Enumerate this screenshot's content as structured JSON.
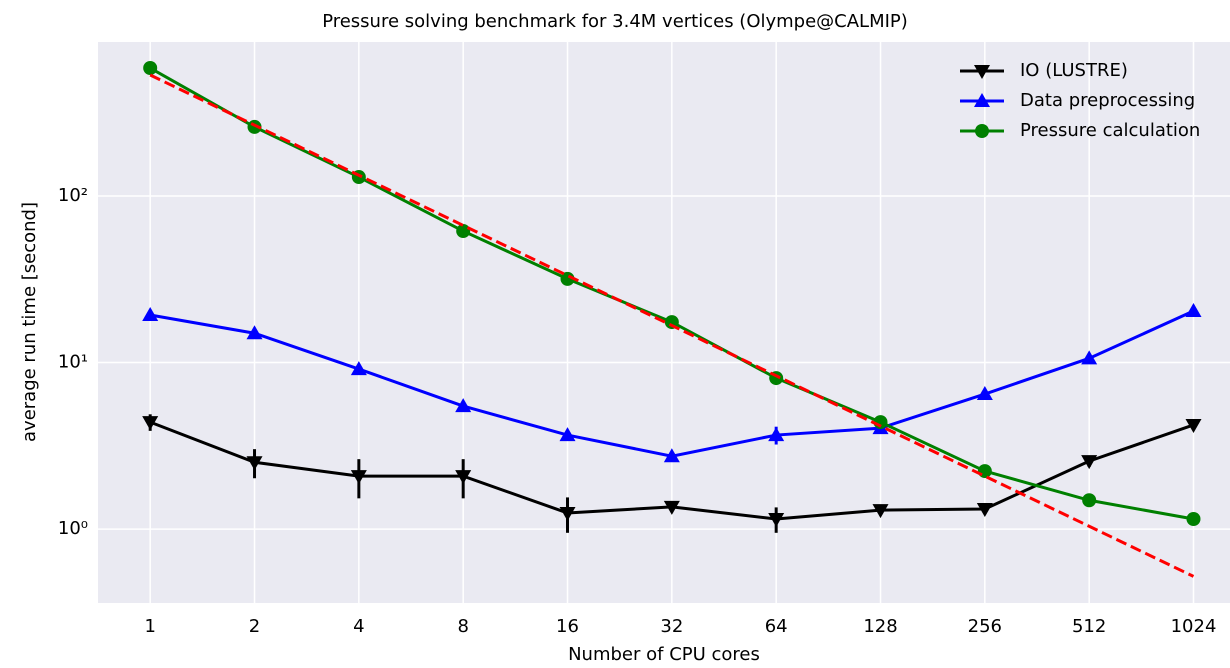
{
  "chart_data": {
    "type": "line",
    "title": "Pressure solving benchmark for 3.4M vertices (Olympe@CALMIP)",
    "xlabel": "Number of CPU cores",
    "ylabel": "average run time [second]",
    "x": [
      1,
      2,
      4,
      8,
      16,
      32,
      64,
      128,
      256,
      512,
      1024
    ],
    "xscale": "log2",
    "yscale": "log",
    "xlim": [
      0.707,
      1305
    ],
    "ylim": [
      0.36,
      841
    ],
    "xticks": [
      1,
      2,
      4,
      8,
      16,
      32,
      64,
      128,
      256,
      512,
      1024
    ],
    "yticks": [
      {
        "value": 1,
        "label": "10⁰"
      },
      {
        "value": 10,
        "label": "10¹"
      },
      {
        "value": 100,
        "label": "10²"
      }
    ],
    "grid": true,
    "legend": "upper right",
    "series": [
      {
        "name": "IO (LUSTRE)",
        "color": "#000000",
        "marker": "triangle-down",
        "values": [
          4.39,
          2.52,
          2.08,
          2.08,
          1.25,
          1.36,
          1.15,
          1.3,
          1.32,
          2.56,
          4.22
        ],
        "errors": [
          0.5,
          0.5,
          0.55,
          0.55,
          0.3,
          0.1,
          0.2,
          0.08,
          0.05,
          0.2,
          0.3
        ]
      },
      {
        "name": "Data preprocessing",
        "color": "#0000ff",
        "marker": "triangle-up",
        "values": [
          19.3,
          15.0,
          9.14,
          5.48,
          3.67,
          2.74,
          3.67,
          4.04,
          6.47,
          10.6,
          20.4
        ],
        "errors": [
          0.5,
          0.4,
          0.2,
          0.1,
          0.1,
          0.1,
          0.45,
          0.1,
          0.1,
          0.2,
          0.5
        ]
      },
      {
        "name": "Pressure calculation",
        "color": "#008000",
        "marker": "circle",
        "values": [
          587,
          260,
          130,
          61.6,
          31.8,
          17.5,
          8.07,
          4.39,
          2.23,
          1.49,
          1.15
        ],
        "errors": [
          5,
          3,
          1,
          0.5,
          0.3,
          0.2,
          0.2,
          0.1,
          0.05,
          0.05,
          0.05
        ]
      }
    ],
    "reference_line": {
      "color": "#ff0000",
      "style": "dashed",
      "values": [
        533,
        266.5,
        133.25,
        66.6,
        33.3,
        16.7,
        8.33,
        4.16,
        2.08,
        1.04,
        0.52
      ]
    }
  }
}
